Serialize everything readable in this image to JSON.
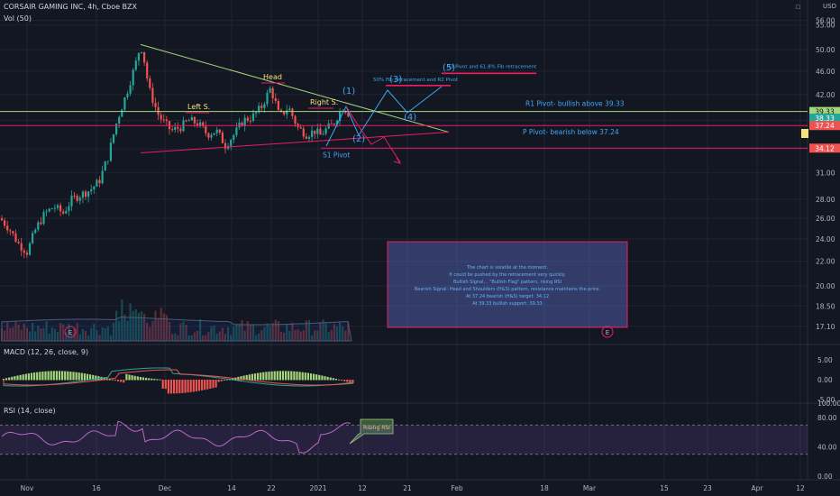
{
  "header": {
    "symbol_line": "CORSAIR GAMING INC, 4h, Cboe BZX",
    "volume_label": "Vol (50)",
    "macd_label": "MACD (12, 26, close, 9)",
    "rsi_label": "RSI (14, close)",
    "currency": "USD"
  },
  "colors": {
    "background": "#131722",
    "up": "#26a69a",
    "down": "#ef5350",
    "grid": "#1f2433",
    "resistance": "#a5d67c",
    "pivot": "#e91e63",
    "annotation_blue": "#42a5f5",
    "note_box": "#5c6bc0",
    "rsi_band": "#7e57c2"
  },
  "chart_data": {
    "type": "candlestick",
    "title": "CORSAIR GAMING INC, 4h, Cboe BZX",
    "x_tick_labels": [
      "Nov",
      "16",
      "Dec",
      "14",
      "22",
      "2021",
      "12",
      "21",
      "Feb",
      "18",
      "Mar",
      "15",
      "23",
      "Apr",
      "12"
    ],
    "price_axis": {
      "ticks": [
        56.0,
        55.0,
        50.0,
        46.0,
        42.0,
        38.0,
        34.0,
        31.0,
        28.0,
        26.0,
        24.0,
        22.0,
        20.0,
        18.5,
        17.1
      ],
      "current_price_labels": [
        {
          "value": 39.33,
          "color": "#a5d67c"
        },
        {
          "value": 38.33,
          "color": "#26a69a"
        },
        {
          "value": 37.24,
          "color": "#ef5350"
        },
        {
          "value": 34.12,
          "color": "#ef5350"
        }
      ],
      "scale": "log"
    },
    "macd": {
      "ticks": [
        5.0,
        0.0,
        -5.0
      ]
    },
    "rsi": {
      "ticks": [
        100.0,
        80.0,
        40.0,
        0.0
      ]
    },
    "levels": [
      {
        "name": "R1 Pivot- bullish above 39.33",
        "value": 39.33
      },
      {
        "name": "P Pivot- bearish below 37.24",
        "value": 37.24
      },
      {
        "name": "S1 Pivot",
        "value": 34.12
      }
    ],
    "annotations": {
      "head": "Head",
      "left_shoulder": "Left S.",
      "right_shoulder": "Right S.",
      "s1_pivot": "S1 Pivot",
      "wave_1": "(1)",
      "wave_2": "(2)",
      "wave_3": "(3)",
      "wave_4": "(4)",
      "wave_5": "(5)",
      "fib_50": "50% Fib retracement and R2 Pivot",
      "fib_618": "R3 Pivot and 61.8% Fib retracement",
      "rising_rsi": "Rising RSI",
      "earnings_marker": "E"
    },
    "note_lines": [
      "The chart is volatile at the moment.",
      "It could be pushed by the retracement very quickly.",
      "Bullish Signal… \"Bullish Flag\" pattern, rising RSI",
      "Bearish Signal: Head and Shoulders (H&S) pattern, resistance maintains the price.",
      "At 37.24 bearish (H&S) target: 34.12",
      "At 39.33 bullish support: 39.33"
    ],
    "grid": true
  }
}
